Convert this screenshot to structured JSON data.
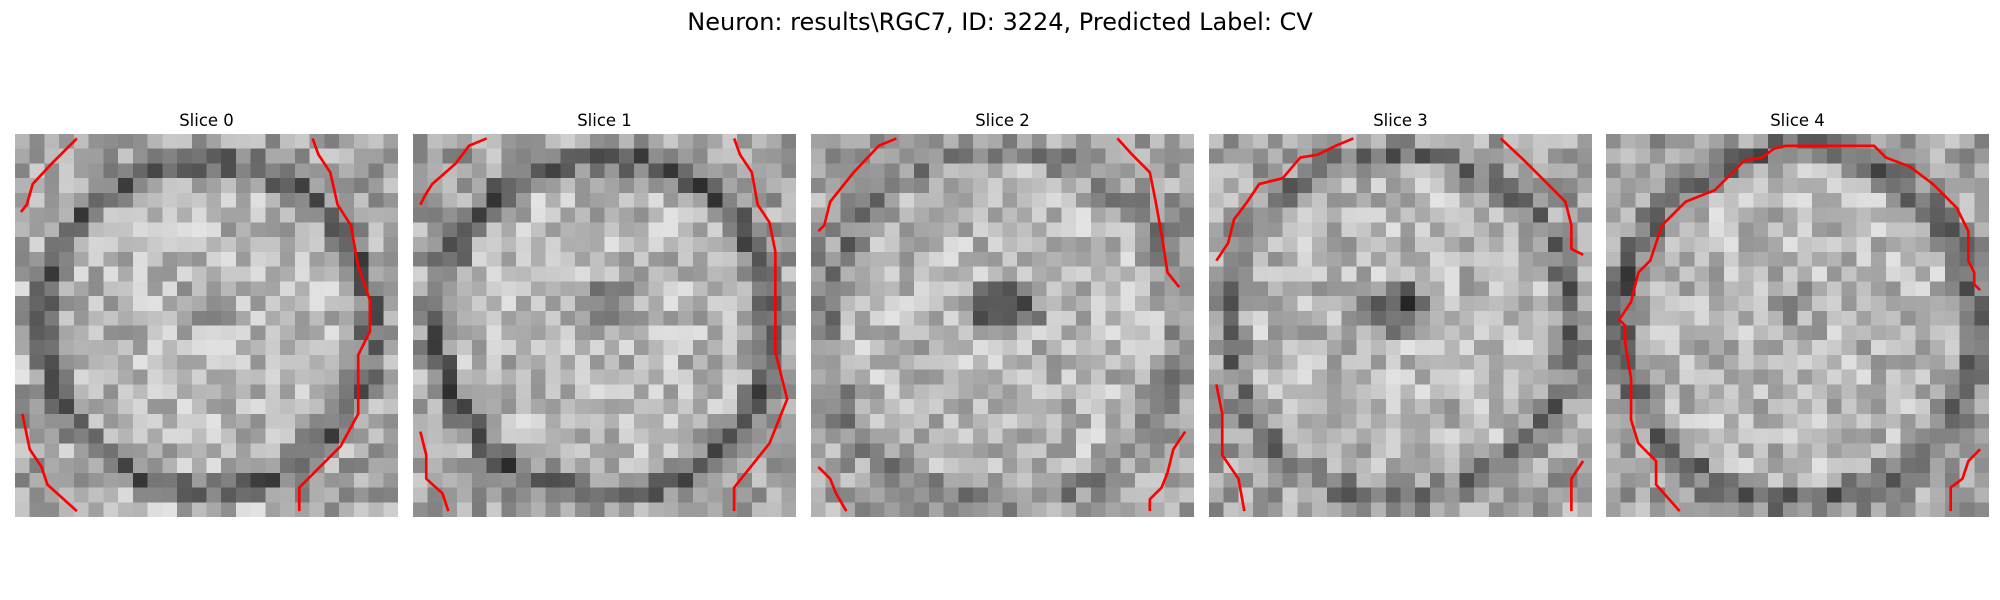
{
  "figure": {
    "title": "Neuron: results\\RGC7, ID: 3224, Predicted Label: CV"
  },
  "colors": {
    "contour": "#ff0000",
    "background": "#ffffff"
  },
  "grid_size": 26,
  "panels": [
    {
      "title": "Slice 0",
      "dark_ring_intensity": 0.32,
      "center_dark": 0.12,
      "ring_radius": 0.43,
      "contours": [
        [
          [
            4.2,
            0.3
          ],
          [
            2.5,
            2.0
          ],
          [
            1.2,
            3.4
          ],
          [
            0.8,
            4.8
          ],
          [
            0.4,
            5.3
          ]
        ],
        [
          [
            20.2,
            0.3
          ],
          [
            20.6,
            1.4
          ],
          [
            21.4,
            2.6
          ],
          [
            21.9,
            4.8
          ],
          [
            22.8,
            6.2
          ],
          [
            23.3,
            9.0
          ],
          [
            24.1,
            11.3
          ],
          [
            24.1,
            13.4
          ],
          [
            23.3,
            15.0
          ],
          [
            23.3,
            19.0
          ],
          [
            22.1,
            21.2
          ],
          [
            19.3,
            24.0
          ],
          [
            19.3,
            25.6
          ]
        ],
        [
          [
            0.5,
            19.0
          ],
          [
            1.0,
            21.4
          ],
          [
            1.8,
            22.6
          ],
          [
            2.2,
            23.8
          ],
          [
            4.2,
            25.6
          ]
        ]
      ]
    },
    {
      "title": "Slice 1",
      "dark_ring_intensity": 0.28,
      "center_dark": 0.35,
      "ring_radius": 0.44,
      "contours": [
        [
          [
            5.0,
            0.3
          ],
          [
            3.8,
            0.8
          ],
          [
            2.9,
            2.0
          ],
          [
            1.3,
            3.4
          ],
          [
            0.8,
            4.2
          ],
          [
            0.5,
            4.8
          ]
        ],
        [
          [
            21.8,
            0.3
          ],
          [
            22.2,
            1.4
          ],
          [
            23.0,
            2.6
          ],
          [
            23.4,
            4.8
          ],
          [
            24.2,
            6.0
          ],
          [
            24.6,
            8.0
          ],
          [
            24.6,
            14.8
          ],
          [
            25.4,
            18.0
          ],
          [
            25.0,
            19.0
          ],
          [
            24.2,
            21.0
          ],
          [
            22.6,
            23.0
          ],
          [
            21.8,
            24.0
          ],
          [
            21.8,
            25.6
          ]
        ],
        [
          [
            0.5,
            20.2
          ],
          [
            0.9,
            21.8
          ],
          [
            0.9,
            23.4
          ],
          [
            2.0,
            24.4
          ],
          [
            2.4,
            25.6
          ]
        ]
      ]
    },
    {
      "title": "Slice 2",
      "dark_ring_intensity": 0.45,
      "center_dark": 0.75,
      "ring_radius": 0.46,
      "contours": [
        [
          [
            5.8,
            0.3
          ],
          [
            4.6,
            0.8
          ],
          [
            2.9,
            2.6
          ],
          [
            1.3,
            4.6
          ],
          [
            0.9,
            6.2
          ],
          [
            0.5,
            6.6
          ]
        ],
        [
          [
            20.8,
            0.3
          ],
          [
            21.8,
            1.4
          ],
          [
            23.0,
            2.6
          ],
          [
            23.4,
            4.6
          ],
          [
            23.8,
            6.8
          ],
          [
            24.2,
            9.4
          ],
          [
            25.0,
            10.4
          ]
        ],
        [
          [
            0.5,
            22.6
          ],
          [
            1.3,
            23.4
          ],
          [
            1.7,
            24.4
          ],
          [
            2.4,
            25.6
          ]
        ],
        [
          [
            25.4,
            20.2
          ],
          [
            24.6,
            21.4
          ],
          [
            24.2,
            23.0
          ],
          [
            23.8,
            24.0
          ],
          [
            23.0,
            24.8
          ],
          [
            23.0,
            25.6
          ]
        ]
      ]
    },
    {
      "title": "Slice 3",
      "dark_ring_intensity": 0.4,
      "center_dark": 0.7,
      "ring_radius": 0.45,
      "contours": [
        [
          [
            9.8,
            0.3
          ],
          [
            8.6,
            0.8
          ],
          [
            7.4,
            1.4
          ],
          [
            6.2,
            1.6
          ],
          [
            5.0,
            3.0
          ],
          [
            3.4,
            3.4
          ],
          [
            2.6,
            4.6
          ],
          [
            1.7,
            5.8
          ],
          [
            1.3,
            7.4
          ],
          [
            0.5,
            8.6
          ]
        ],
        [
          [
            19.8,
            0.3
          ],
          [
            21.4,
            1.8
          ],
          [
            23.0,
            3.4
          ],
          [
            24.2,
            4.6
          ],
          [
            24.6,
            6.2
          ],
          [
            24.6,
            7.8
          ],
          [
            25.4,
            8.2
          ]
        ],
        [
          [
            0.5,
            17.0
          ],
          [
            0.9,
            19.0
          ],
          [
            0.9,
            21.8
          ],
          [
            2.0,
            23.4
          ],
          [
            2.4,
            25.6
          ]
        ],
        [
          [
            25.4,
            22.2
          ],
          [
            24.6,
            23.4
          ],
          [
            24.6,
            25.6
          ]
        ]
      ]
    },
    {
      "title": "Slice 4",
      "dark_ring_intensity": 0.34,
      "center_dark": 0.15,
      "ring_radius": 0.46,
      "contours": [
        [
          [
            5.0,
            25.6
          ],
          [
            3.4,
            23.8
          ],
          [
            3.4,
            22.2
          ],
          [
            2.2,
            21.0
          ],
          [
            1.7,
            19.4
          ],
          [
            1.7,
            16.6
          ],
          [
            1.3,
            14.2
          ],
          [
            1.3,
            13.0
          ],
          [
            0.9,
            12.6
          ],
          [
            1.7,
            11.4
          ],
          [
            2.2,
            9.4
          ],
          [
            3.0,
            8.6
          ],
          [
            3.8,
            6.2
          ],
          [
            5.4,
            4.6
          ],
          [
            7.4,
            3.8
          ],
          [
            8.6,
            2.6
          ],
          [
            9.4,
            1.8
          ],
          [
            10.6,
            1.6
          ],
          [
            11.4,
            1.0
          ],
          [
            12.2,
            0.8
          ],
          [
            18.2,
            0.8
          ],
          [
            19.0,
            1.6
          ],
          [
            20.6,
            2.2
          ],
          [
            22.2,
            3.4
          ],
          [
            23.8,
            5.0
          ],
          [
            24.6,
            6.6
          ],
          [
            24.6,
            8.6
          ],
          [
            25.0,
            9.4
          ],
          [
            25.0,
            10.2
          ],
          [
            25.4,
            10.6
          ]
        ],
        [
          [
            25.4,
            21.4
          ],
          [
            24.6,
            22.2
          ],
          [
            24.2,
            23.4
          ],
          [
            23.4,
            24.0
          ],
          [
            23.4,
            25.6
          ]
        ]
      ]
    }
  ]
}
